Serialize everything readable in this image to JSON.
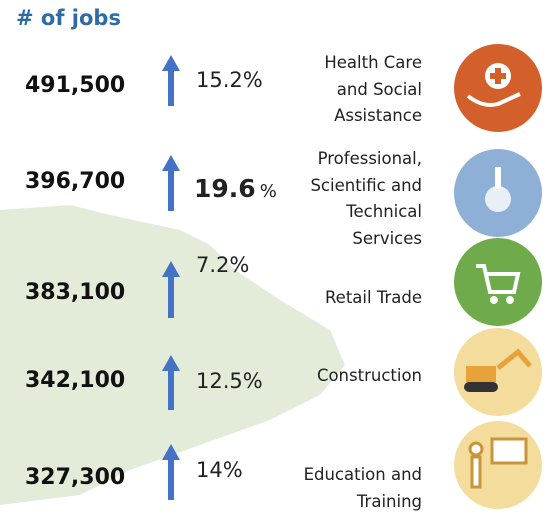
{
  "header": {
    "title": "# of jobs"
  },
  "rows": [
    {
      "jobs": "491,500",
      "growth": "15.2%",
      "industry": [
        "Health Care",
        "and Social",
        "Assistance"
      ]
    },
    {
      "jobs": "396,700",
      "growth": "19.6",
      "growth_unit": "%",
      "industry": [
        "Professional,",
        "Scientific and",
        "Technical",
        "Services"
      ]
    },
    {
      "jobs": "383,100",
      "growth": "7.2%",
      "industry": [
        "Retail Trade"
      ]
    },
    {
      "jobs": "342,100",
      "growth": "12.5%",
      "industry": [
        "Construction"
      ]
    },
    {
      "jobs": "327,300",
      "growth": "14%",
      "industry": [
        "Education and",
        "Training"
      ]
    }
  ]
}
